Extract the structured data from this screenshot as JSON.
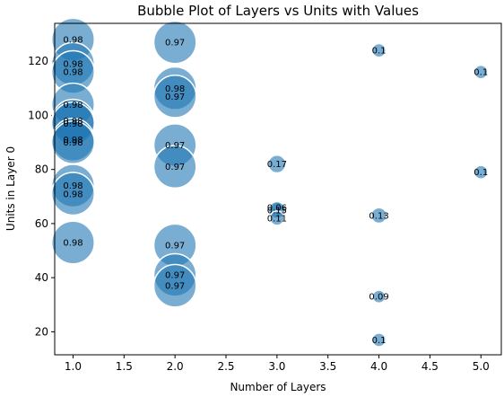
{
  "chart_data": {
    "type": "scatter",
    "title": "Bubble Plot of Layers vs Units with Values",
    "xlabel": "Number of Layers",
    "ylabel": "Units in Layer 0",
    "xlim": [
      0.82,
      5.2
    ],
    "ylim": [
      11.5,
      134
    ],
    "xticks": [
      "1.0",
      "1.5",
      "2.0",
      "2.5",
      "3.0",
      "3.5",
      "4.0",
      "4.5",
      "5.0"
    ],
    "yticks": [
      "20",
      "40",
      "60",
      "80",
      "100",
      "120"
    ],
    "grid": false,
    "bubble_color": "#1f77b4",
    "points": [
      {
        "x": 1,
        "y": 128,
        "value": 0.98,
        "label": "0.98"
      },
      {
        "x": 1,
        "y": 119,
        "value": 0.98,
        "label": "0.98"
      },
      {
        "x": 1,
        "y": 116,
        "value": 0.98,
        "label": "0.98"
      },
      {
        "x": 1,
        "y": 104,
        "value": 0.98,
        "label": "0.98"
      },
      {
        "x": 1,
        "y": 98,
        "value": 0.98,
        "label": "0.98"
      },
      {
        "x": 1,
        "y": 97,
        "value": 0.98,
        "label": "0.98"
      },
      {
        "x": 1,
        "y": 91,
        "value": 0.98,
        "label": "0.98"
      },
      {
        "x": 1,
        "y": 90,
        "value": 0.98,
        "label": "0.98"
      },
      {
        "x": 1,
        "y": 74,
        "value": 0.98,
        "label": "0.98"
      },
      {
        "x": 1,
        "y": 71,
        "value": 0.98,
        "label": "0.98"
      },
      {
        "x": 1,
        "y": 53,
        "value": 0.98,
        "label": "0.98"
      },
      {
        "x": 2,
        "y": 127,
        "value": 0.97,
        "label": "0.97"
      },
      {
        "x": 2,
        "y": 110,
        "value": 0.98,
        "label": "0.98"
      },
      {
        "x": 2,
        "y": 107,
        "value": 0.97,
        "label": "0.97"
      },
      {
        "x": 2,
        "y": 89,
        "value": 0.97,
        "label": "0.97"
      },
      {
        "x": 2,
        "y": 81,
        "value": 0.97,
        "label": "0.97"
      },
      {
        "x": 2,
        "y": 52,
        "value": 0.97,
        "label": "0.97"
      },
      {
        "x": 2,
        "y": 41,
        "value": 0.97,
        "label": "0.97"
      },
      {
        "x": 2,
        "y": 37,
        "value": 0.97,
        "label": "0.97"
      },
      {
        "x": 3,
        "y": 82,
        "value": 0.17,
        "label": "0.17"
      },
      {
        "x": 3,
        "y": 66,
        "value": 0.06,
        "label": "0.06"
      },
      {
        "x": 3,
        "y": 65,
        "value": 0.15,
        "label": "0.15"
      },
      {
        "x": 3,
        "y": 62,
        "value": 0.11,
        "label": "0.11"
      },
      {
        "x": 4,
        "y": 124,
        "value": 0.1,
        "label": "0.1"
      },
      {
        "x": 4,
        "y": 63,
        "value": 0.13,
        "label": "0.13"
      },
      {
        "x": 4,
        "y": 33,
        "value": 0.09,
        "label": "0.09"
      },
      {
        "x": 4,
        "y": 17,
        "value": 0.1,
        "label": "0.1"
      },
      {
        "x": 5,
        "y": 116,
        "value": 0.1,
        "label": "0.1"
      },
      {
        "x": 5,
        "y": 79,
        "value": 0.1,
        "label": "0.1"
      }
    ]
  }
}
